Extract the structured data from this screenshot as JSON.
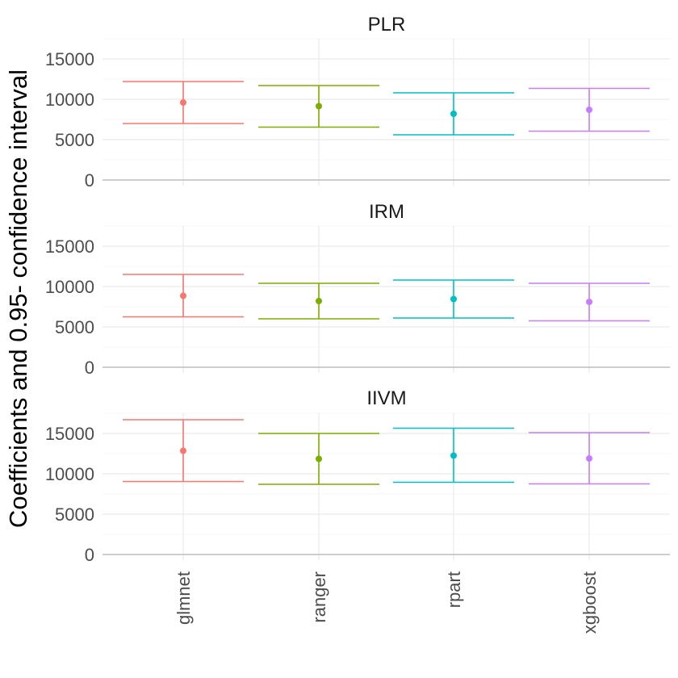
{
  "chart_data": {
    "type": "errorbar",
    "ylabel": "Coefficients and 0.95- confidence interval",
    "xlabel": "",
    "categories": [
      "glmnet",
      "ranger",
      "rpart",
      "xgboost"
    ],
    "colors": [
      "#F8766D",
      "#7CAE00",
      "#00BFC4",
      "#C77CFF"
    ],
    "ylim": [
      0,
      17500
    ],
    "yticks": [
      0,
      5000,
      10000,
      15000
    ],
    "grid": true,
    "legend": "none",
    "panels": [
      {
        "title": "PLR",
        "points": [
          {
            "category": "glmnet",
            "estimate": 9600,
            "lower": 7000,
            "upper": 12200
          },
          {
            "category": "ranger",
            "estimate": 9150,
            "lower": 6550,
            "upper": 11700
          },
          {
            "category": "rpart",
            "estimate": 8200,
            "lower": 5600,
            "upper": 10800
          },
          {
            "category": "xgboost",
            "estimate": 8700,
            "lower": 6050,
            "upper": 11350
          }
        ]
      },
      {
        "title": "IRM",
        "points": [
          {
            "category": "glmnet",
            "estimate": 8850,
            "lower": 6250,
            "upper": 11500
          },
          {
            "category": "ranger",
            "estimate": 8200,
            "lower": 6000,
            "upper": 10400
          },
          {
            "category": "rpart",
            "estimate": 8450,
            "lower": 6100,
            "upper": 10800
          },
          {
            "category": "xgboost",
            "estimate": 8100,
            "lower": 5750,
            "upper": 10400
          }
        ]
      },
      {
        "title": "IIVM",
        "points": [
          {
            "category": "glmnet",
            "estimate": 12850,
            "lower": 9050,
            "upper": 16700
          },
          {
            "category": "ranger",
            "estimate": 11850,
            "lower": 8700,
            "upper": 15000
          },
          {
            "category": "rpart",
            "estimate": 12250,
            "lower": 8950,
            "upper": 15650
          },
          {
            "category": "xgboost",
            "estimate": 11900,
            "lower": 8750,
            "upper": 15100
          }
        ]
      }
    ]
  }
}
